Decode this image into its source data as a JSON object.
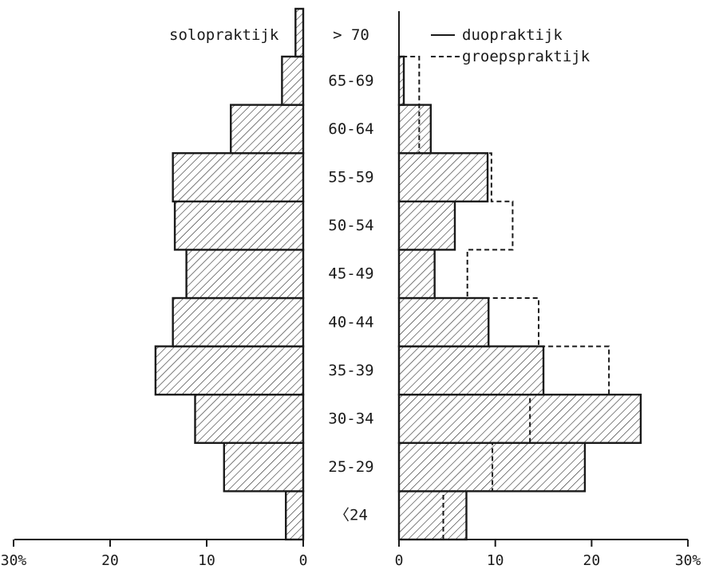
{
  "chart_data": [
    {
      "type": "bar",
      "orientation": "horizontal",
      "direction": "leftward",
      "title": "solopraktijk",
      "categories": [
        "<24",
        "25-29",
        "30-34",
        "35-39",
        "40-44",
        "45-49",
        "50-54",
        "55-59",
        "60-64",
        "65-69",
        ">70"
      ],
      "category_labels": [
        "〈24",
        "25-29",
        "30-34",
        "35-39",
        "40-44",
        "45-49",
        "50-54",
        "55-59",
        "60-64",
        "65-69",
        "> 70"
      ],
      "series": [
        {
          "name": "solopraktijk",
          "values": [
            1.8,
            8.2,
            11.2,
            15.3,
            13.5,
            12.1,
            13.3,
            13.5,
            7.5,
            2.2,
            0.8
          ]
        }
      ],
      "xlim": [
        0,
        30
      ],
      "xticks": [
        "30%",
        "20",
        "10",
        "0"
      ],
      "grid": false
    },
    {
      "type": "bar",
      "orientation": "horizontal",
      "direction": "rightward",
      "categories": [
        "<24",
        "25-29",
        "30-34",
        "35-39",
        "40-44",
        "45-49",
        "50-54",
        "55-59",
        "60-64",
        "65-69",
        ">70"
      ],
      "series": [
        {
          "name": "duopraktijk",
          "style": "solid hatched",
          "values": [
            7.0,
            19.3,
            25.1,
            15.0,
            9.3,
            3.7,
            5.8,
            9.2,
            3.3,
            0.5,
            0
          ]
        },
        {
          "name": "groepspraktijk",
          "style": "dashed",
          "values": [
            4.6,
            9.7,
            13.6,
            21.8,
            14.5,
            7.1,
            11.8,
            9.6,
            2.1,
            2.1,
            0
          ]
        }
      ],
      "xlim": [
        0,
        30
      ],
      "xticks": [
        "0",
        "10",
        "20",
        "30%"
      ],
      "legend": "top-right",
      "grid": false
    }
  ]
}
